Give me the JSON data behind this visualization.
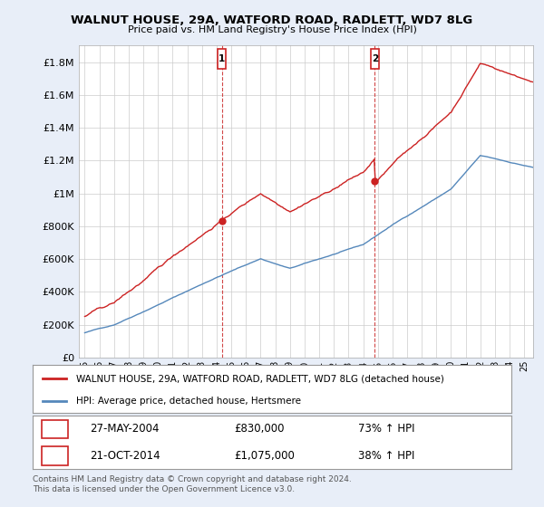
{
  "title": "WALNUT HOUSE, 29A, WATFORD ROAD, RADLETT, WD7 8LG",
  "subtitle": "Price paid vs. HM Land Registry's House Price Index (HPI)",
  "background_color": "#e8eef8",
  "plot_background": "#ffffff",
  "sale1_year": 2004.37,
  "sale1_price": 830000,
  "sale1_label": "27-MAY-2004",
  "sale1_hpi": "73% ↑ HPI",
  "sale2_year": 2014.79,
  "sale2_price": 1075000,
  "sale2_label": "21-OCT-2014",
  "sale2_hpi": "38% ↑ HPI",
  "ylim": [
    0,
    1900000
  ],
  "yticks": [
    0,
    200000,
    400000,
    600000,
    800000,
    1000000,
    1200000,
    1400000,
    1600000,
    1800000
  ],
  "ytick_labels": [
    "£0",
    "£200K",
    "£400K",
    "£600K",
    "£800K",
    "£1M",
    "£1.2M",
    "£1.4M",
    "£1.6M",
    "£1.8M"
  ],
  "hpi_color": "#5588bb",
  "price_color": "#cc2222",
  "vline_color": "#cc3333",
  "legend_label_hpi": "HPI: Average price, detached house, Hertsmere",
  "legend_label_price": "WALNUT HOUSE, 29A, WATFORD ROAD, RADLETT, WD7 8LG (detached house)",
  "footer": "Contains HM Land Registry data © Crown copyright and database right 2024.\nThis data is licensed under the Open Government Licence v3.0.",
  "box_color": "#cc2222",
  "grid_color": "#cccccc"
}
